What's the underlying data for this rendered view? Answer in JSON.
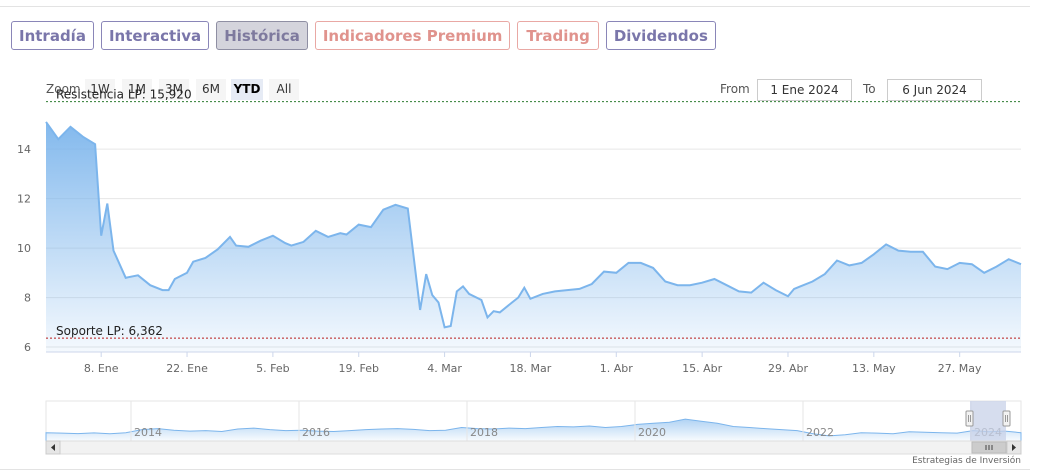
{
  "tabs": [
    {
      "label": "Intradía",
      "active": false,
      "color": "#7a76aa"
    },
    {
      "label": "Interactiva",
      "active": false,
      "color": "#7a76aa"
    },
    {
      "label": "Histórica",
      "active": true,
      "color": "#7e7a9e"
    },
    {
      "label": "Indicadores Premium",
      "active": false,
      "color": "#e0938d"
    },
    {
      "label": "Trading",
      "active": false,
      "color": "#e0938d"
    },
    {
      "label": "Dividendos",
      "active": false,
      "color": "#7a76aa"
    }
  ],
  "zoom": {
    "label": "Zoom",
    "buttons": [
      "1W",
      "1M",
      "3M",
      "6M",
      "YTD",
      "All"
    ],
    "selected": "YTD"
  },
  "range": {
    "from_label": "From",
    "from_value": "1 Ene 2024",
    "to_label": "To",
    "to_value": "6 Jun 2024"
  },
  "chart_data": {
    "type": "area",
    "series_color": "#7cb5ec",
    "y_ticks": [
      6,
      8,
      10,
      12,
      14
    ],
    "ylim": [
      5.8,
      15.5
    ],
    "x_ticks": [
      "8. Ene",
      "22. Ene",
      "5. Feb",
      "19. Feb",
      "4. Mar",
      "18. Mar",
      "1. Abr",
      "15. Abr",
      "29. Abr",
      "13. May",
      "27. May"
    ],
    "x_tick_days": [
      7,
      21,
      35,
      49,
      63,
      77,
      91,
      105,
      119,
      133,
      147
    ],
    "xlim_days": [
      -2,
      157
    ],
    "plot_lines": [
      {
        "label": "Resistencia LP: 15,920",
        "value": 15.92,
        "color": "#2e7d32"
      },
      {
        "label": "Soporte LP: 6,362",
        "value": 6.362,
        "color": "#b71c1c"
      }
    ],
    "x_days": [
      -2,
      0,
      2,
      4,
      6,
      7,
      8,
      9,
      11,
      13,
      15,
      17,
      18,
      19,
      21,
      22,
      24,
      26,
      28,
      29,
      31,
      33,
      35,
      37,
      38,
      40,
      42,
      44,
      46,
      47,
      49,
      51,
      53,
      55,
      57,
      59,
      60,
      61,
      62,
      63,
      64,
      65,
      66,
      67,
      69,
      70,
      71,
      72,
      74,
      75,
      76,
      77,
      79,
      81,
      83,
      85,
      87,
      89,
      91,
      93,
      95,
      97,
      99,
      101,
      103,
      105,
      107,
      109,
      111,
      113,
      115,
      117,
      119,
      120,
      121,
      123,
      125,
      127,
      129,
      130,
      131,
      133,
      135,
      137,
      139,
      141,
      143,
      145,
      147,
      149,
      151,
      153,
      155,
      157
    ],
    "values": [
      15.1,
      14.4,
      14.9,
      14.5,
      14.2,
      10.5,
      11.8,
      9.9,
      8.8,
      8.9,
      8.5,
      8.3,
      8.3,
      8.75,
      9.0,
      9.45,
      9.6,
      9.95,
      10.45,
      10.1,
      10.05,
      10.3,
      10.5,
      10.2,
      10.1,
      10.25,
      10.7,
      10.45,
      10.6,
      10.55,
      10.95,
      10.85,
      11.55,
      11.75,
      11.6,
      7.5,
      8.95,
      8.1,
      7.8,
      6.8,
      6.85,
      8.25,
      8.45,
      8.15,
      7.9,
      7.2,
      7.45,
      7.4,
      7.8,
      8.0,
      8.4,
      7.95,
      8.15,
      8.25,
      8.3,
      8.35,
      8.55,
      9.05,
      9.0,
      9.4,
      9.4,
      9.2,
      8.65,
      8.5,
      8.5,
      8.6,
      8.75,
      8.5,
      8.25,
      8.2,
      8.6,
      8.3,
      8.05,
      8.35,
      8.45,
      8.65,
      8.95,
      9.5,
      9.3,
      9.35,
      9.4,
      9.75,
      10.15,
      9.9,
      9.85,
      9.85,
      9.25,
      9.15,
      9.4,
      9.35,
      9.0,
      9.25,
      9.55,
      9.35
    ],
    "navigator": {
      "year_labels": [
        "2014",
        "2016",
        "2018",
        "2020",
        "2022",
        "2024"
      ],
      "series": [
        0.3,
        0.28,
        0.26,
        0.29,
        0.25,
        0.3,
        0.45,
        0.5,
        0.42,
        0.38,
        0.4,
        0.36,
        0.48,
        0.52,
        0.45,
        0.4,
        0.42,
        0.38,
        0.36,
        0.4,
        0.45,
        0.48,
        0.5,
        0.46,
        0.4,
        0.42,
        0.55,
        0.5,
        0.48,
        0.52,
        0.5,
        0.55,
        0.6,
        0.58,
        0.62,
        0.55,
        0.6,
        0.7,
        0.75,
        0.8,
        0.95,
        0.85,
        0.75,
        0.6,
        0.55,
        0.5,
        0.45,
        0.4,
        0.25,
        0.15,
        0.2,
        0.3,
        0.28,
        0.25,
        0.35,
        0.32,
        0.3,
        0.28,
        0.4,
        0.35,
        0.38,
        0.3
      ]
    }
  },
  "credits": "Estrategias de Inversión"
}
